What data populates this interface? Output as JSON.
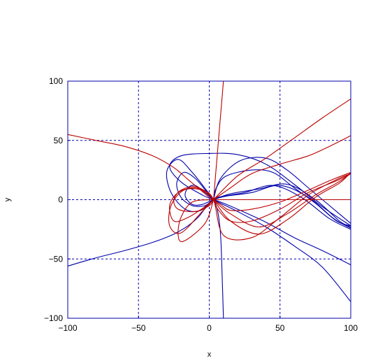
{
  "chart_data": {
    "type": "line",
    "xlabel": "x",
    "ylabel": "y",
    "xlim": [
      -100,
      100
    ],
    "ylim": [
      -100,
      100
    ],
    "xticks": [
      -100,
      -50,
      0,
      50,
      100
    ],
    "yticks": [
      -100,
      -50,
      0,
      50,
      100
    ],
    "xtick_labels": [
      "−100",
      "−50",
      "0",
      "50",
      "100"
    ],
    "ytick_labels": [
      "−100",
      "−50",
      "0",
      "50",
      "100"
    ],
    "grid": true,
    "grid_color": "#0000aa",
    "frame_color": "#0000aa",
    "series": [
      {
        "color": "#0000aa",
        "points": [
          [
            -100,
            -56
          ],
          [
            -80,
            -49
          ],
          [
            -60,
            -43
          ],
          [
            -40,
            -36
          ],
          [
            -25,
            -29
          ],
          [
            -15,
            -22
          ],
          [
            -8,
            -15
          ],
          [
            -4,
            -9
          ],
          [
            0,
            -3
          ],
          [
            3,
            0
          ]
        ]
      },
      {
        "color": "#0000aa",
        "points": [
          [
            3,
            0
          ],
          [
            8,
            -3
          ],
          [
            20,
            -10
          ],
          [
            40,
            -23
          ],
          [
            60,
            -39
          ],
          [
            80,
            -57
          ],
          [
            100,
            -86
          ]
        ]
      },
      {
        "color": "#0000aa",
        "points": [
          [
            3,
            0
          ],
          [
            8,
            -2
          ],
          [
            20,
            -8
          ],
          [
            40,
            -19
          ],
          [
            60,
            -32
          ],
          [
            80,
            -43
          ],
          [
            100,
            -55
          ]
        ]
      },
      {
        "color": "#0000aa",
        "points": [
          [
            3,
            0
          ],
          [
            6,
            -10
          ],
          [
            8,
            -30
          ],
          [
            9,
            -60
          ],
          [
            10,
            -100
          ]
        ]
      },
      {
        "color": "#0000aa",
        "points": [
          [
            3,
            0
          ],
          [
            -2,
            8
          ],
          [
            -12,
            23
          ],
          [
            -22,
            34
          ],
          [
            -30,
            24
          ],
          [
            -27,
            6
          ],
          [
            -17,
            -8
          ],
          [
            -6,
            -9
          ],
          [
            3,
            0
          ],
          [
            10,
            3
          ],
          [
            25,
            6
          ],
          [
            45,
            12
          ],
          [
            65,
            2
          ],
          [
            85,
            -16
          ],
          [
            100,
            -25
          ]
        ]
      },
      {
        "color": "#0000aa",
        "points": [
          [
            3,
            0
          ],
          [
            -2,
            7
          ],
          [
            -10,
            18
          ],
          [
            -18,
            23
          ],
          [
            -23,
            14
          ],
          [
            -20,
            2
          ],
          [
            -12,
            -5
          ],
          [
            -3,
            -5
          ],
          [
            3,
            0
          ],
          [
            12,
            3
          ],
          [
            30,
            6
          ],
          [
            50,
            12
          ],
          [
            70,
            2
          ],
          [
            88,
            -16
          ],
          [
            100,
            -24
          ]
        ]
      },
      {
        "color": "#0000aa",
        "points": [
          [
            3,
            0
          ],
          [
            -3,
            6
          ],
          [
            -10,
            12
          ],
          [
            -15,
            10
          ],
          [
            -17,
            3
          ],
          [
            -12,
            -4
          ],
          [
            -5,
            -4
          ],
          [
            3,
            0
          ],
          [
            15,
            5
          ],
          [
            35,
            9
          ],
          [
            55,
            13
          ],
          [
            75,
            0
          ],
          [
            92,
            -18
          ],
          [
            100,
            -23
          ]
        ]
      },
      {
        "color": "#0000aa",
        "points": [
          [
            3,
            0
          ],
          [
            5,
            10
          ],
          [
            12,
            20
          ],
          [
            30,
            25
          ],
          [
            45,
            23
          ],
          [
            60,
            10
          ],
          [
            75,
            -3
          ],
          [
            90,
            -18
          ],
          [
            100,
            -22
          ]
        ]
      },
      {
        "color": "#0000aa",
        "points": [
          [
            3,
            0
          ],
          [
            8,
            18
          ],
          [
            22,
            33
          ],
          [
            40,
            35
          ],
          [
            55,
            25
          ],
          [
            70,
            10
          ],
          [
            85,
            -5
          ],
          [
            100,
            -20
          ]
        ]
      },
      {
        "color": "#0000aa",
        "points": [
          [
            3,
            0
          ],
          [
            -5,
            4
          ],
          [
            -20,
            15
          ],
          [
            -28,
            28
          ],
          [
            -20,
            37
          ],
          [
            0,
            39
          ],
          [
            20,
            38
          ],
          [
            40,
            30
          ],
          [
            60,
            13
          ],
          [
            80,
            -6
          ],
          [
            100,
            -22
          ]
        ]
      },
      {
        "color": "#bb0000",
        "points": [
          [
            -100,
            55
          ],
          [
            -80,
            50
          ],
          [
            -60,
            45
          ],
          [
            -40,
            37
          ],
          [
            -25,
            27
          ],
          [
            -15,
            17
          ],
          [
            -8,
            10
          ],
          [
            -3,
            5
          ],
          [
            0,
            2
          ],
          [
            3,
            0
          ]
        ]
      },
      {
        "color": "#bb0000",
        "points": [
          [
            3,
            0
          ],
          [
            10,
            100
          ]
        ]
      },
      {
        "color": "#bb0000",
        "points": [
          [
            3,
            0
          ],
          [
            20,
            20
          ],
          [
            40,
            35
          ],
          [
            60,
            52
          ],
          [
            80,
            69
          ],
          [
            100,
            85
          ]
        ]
      },
      {
        "color": "#bb0000",
        "points": [
          [
            3,
            0
          ],
          [
            15,
            10
          ],
          [
            30,
            22
          ],
          [
            50,
            30
          ],
          [
            70,
            37
          ],
          [
            85,
            45
          ],
          [
            100,
            54
          ]
        ]
      },
      {
        "color": "#bb0000",
        "points": [
          [
            3,
            0
          ],
          [
            8,
            -4
          ],
          [
            15,
            -9
          ],
          [
            30,
            -8
          ],
          [
            50,
            -2
          ],
          [
            70,
            8
          ],
          [
            85,
            16
          ],
          [
            100,
            23
          ]
        ]
      },
      {
        "color": "#bb0000",
        "points": [
          [
            3,
            0
          ],
          [
            6,
            -8
          ],
          [
            15,
            -18
          ],
          [
            30,
            -18
          ],
          [
            50,
            -8
          ],
          [
            70,
            6
          ],
          [
            90,
            16
          ],
          [
            100,
            22
          ]
        ]
      },
      {
        "color": "#bb0000",
        "points": [
          [
            3,
            0
          ],
          [
            0,
            -5
          ],
          [
            -10,
            -10
          ],
          [
            -22,
            -8
          ],
          [
            -25,
            0
          ],
          [
            -20,
            8
          ],
          [
            -10,
            11
          ],
          [
            0,
            5
          ],
          [
            3,
            0
          ],
          [
            15,
            -12
          ],
          [
            35,
            -23
          ],
          [
            55,
            -12
          ],
          [
            75,
            4
          ],
          [
            90,
            14
          ],
          [
            100,
            22
          ]
        ]
      },
      {
        "color": "#bb0000",
        "points": [
          [
            3,
            0
          ],
          [
            -2,
            -5
          ],
          [
            -15,
            -15
          ],
          [
            -25,
            -18
          ],
          [
            -28,
            -5
          ],
          [
            -22,
            6
          ],
          [
            -10,
            10
          ],
          [
            0,
            4
          ],
          [
            3,
            0
          ],
          [
            15,
            -18
          ],
          [
            35,
            -29
          ],
          [
            55,
            -17
          ],
          [
            75,
            2
          ],
          [
            92,
            14
          ],
          [
            100,
            23
          ]
        ]
      },
      {
        "color": "#bb0000",
        "points": [
          [
            3,
            0
          ],
          [
            -5,
            -10
          ],
          [
            -20,
            -28
          ],
          [
            -28,
            -22
          ],
          [
            -27,
            -5
          ],
          [
            -18,
            8
          ],
          [
            -5,
            8
          ],
          [
            3,
            0
          ],
          [
            10,
            -30
          ],
          [
            30,
            -32
          ],
          [
            50,
            -15
          ],
          [
            70,
            4
          ],
          [
            90,
            17
          ],
          [
            100,
            22
          ]
        ]
      },
      {
        "color": "#bb0000",
        "points": [
          [
            3,
            0
          ],
          [
            -3,
            -20
          ],
          [
            -18,
            -35
          ],
          [
            -22,
            -30
          ],
          [
            -20,
            -15
          ],
          [
            -12,
            -2
          ],
          [
            3,
            0
          ],
          [
            10,
            0
          ],
          [
            40,
            0
          ],
          [
            70,
            0
          ],
          [
            100,
            0
          ]
        ]
      }
    ]
  }
}
